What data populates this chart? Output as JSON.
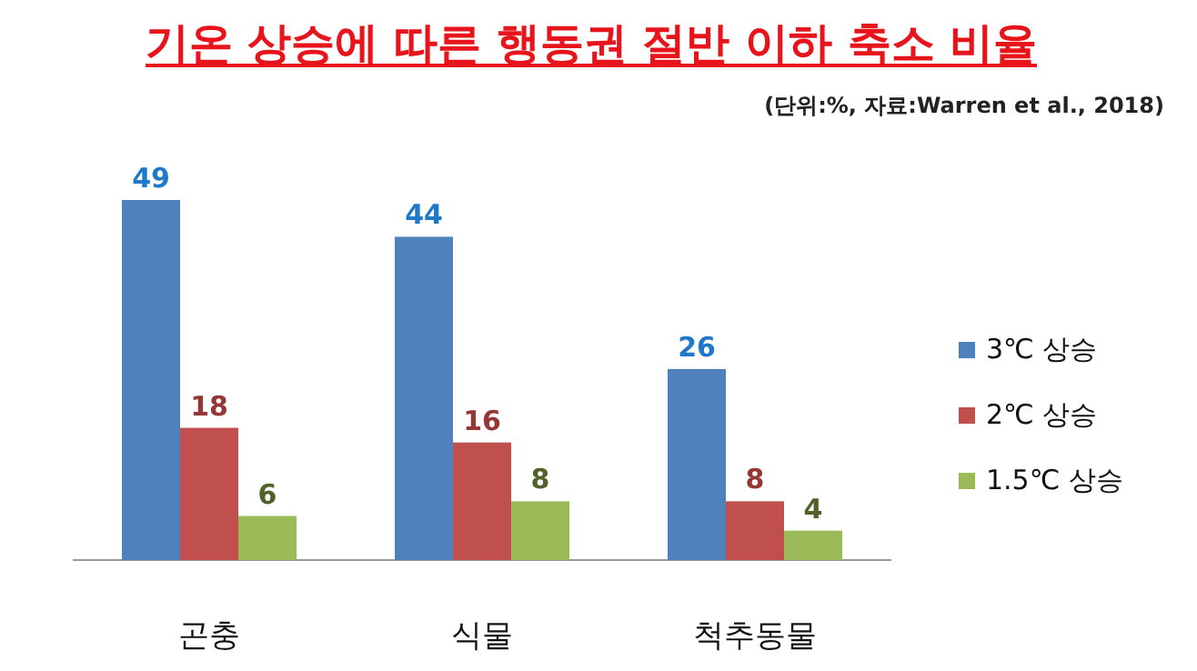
{
  "chart_data": {
    "type": "bar",
    "title": "기온 상승에 따른 행동권 절반 이하 축소 비율",
    "subtitle": "(단위:%, 자료:Warren et al., 2018)",
    "categories": [
      "곤충",
      "식물",
      "척추동물"
    ],
    "series": [
      {
        "name": "3℃ 상승",
        "color": "#4f81bd",
        "values": [
          49,
          44,
          26
        ]
      },
      {
        "name": "2℃ 상승",
        "color": "#c0504d",
        "values": [
          18,
          16,
          8
        ]
      },
      {
        "name": "1.5℃ 상승",
        "color": "#9bbb59",
        "values": [
          6,
          8,
          4
        ]
      }
    ],
    "data_labels": true,
    "legend": "right"
  }
}
